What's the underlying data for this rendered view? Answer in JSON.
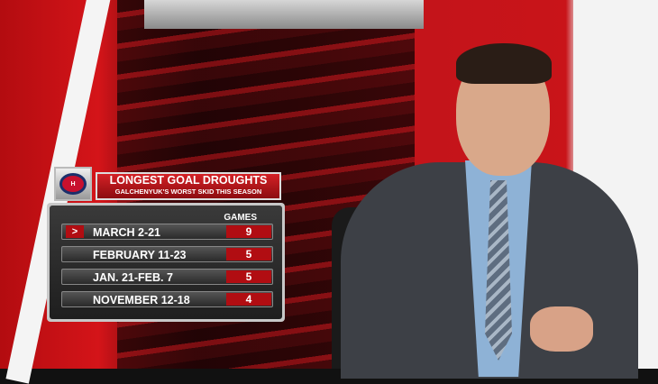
{
  "graphic": {
    "team_logo_text": "CH",
    "title": "LONGEST GOAL DROUGHTS",
    "subtitle": "GALCHENYUK'S WORST SKID THIS SEASON",
    "column_header": "GAMES",
    "rows": [
      {
        "label": "MARCH 2-21",
        "games": "9",
        "highlighted": true
      },
      {
        "label": "FEBRUARY 11-23",
        "games": "5"
      },
      {
        "label": "JAN. 21-FEB. 7",
        "games": "5"
      },
      {
        "label": "NOVEMBER 12-18",
        "games": "4"
      }
    ],
    "accent_color": "#b10d12"
  }
}
